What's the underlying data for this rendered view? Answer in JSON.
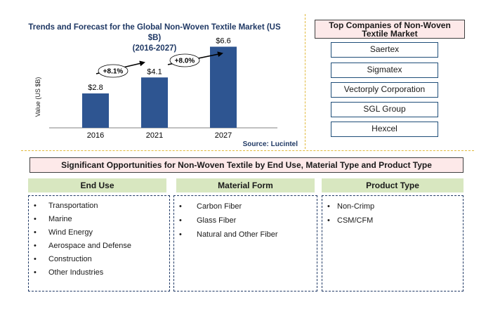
{
  "chart_data": {
    "type": "bar",
    "title": "Trends and Forecast for the Global Non-Woven Textile Market (US $B)",
    "subtitle": "(2016-2027)",
    "categories": [
      "2016",
      "2021",
      "2027"
    ],
    "values": [
      2.8,
      4.1,
      6.6
    ],
    "data_labels": [
      "$2.8",
      "$4.1",
      "$6.6"
    ],
    "ylabel": "Value (US $B)",
    "xlabel": "",
    "ylim": [
      0,
      8
    ],
    "grid": false,
    "bar_color": "#2e5591",
    "annotations": [
      "+8.1%",
      "+8.0%"
    ],
    "source": "Source: Lucintel"
  },
  "companies": {
    "title": "Top Companies of Non-Woven Textile Market",
    "items": [
      "Saertex",
      "Sigmatex",
      "Vectorply Corporation",
      "SGL Group",
      "Hexcel"
    ]
  },
  "opportunities": {
    "title": "Significant Opportunities for Non-Woven Textile by End Use, Material Type and Product Type",
    "columns": [
      {
        "header": "End Use",
        "items": [
          "Transportation",
          "Marine",
          "Wind Energy",
          "Aerospace and Defense",
          "Construction",
          "Other Industries"
        ]
      },
      {
        "header": "Material Form",
        "items": [
          "Carbon Fiber",
          "Glass Fiber",
          "Natural and Other Fiber"
        ]
      },
      {
        "header": "Product Type",
        "items": [
          "Non-Crimp",
          "CSM/CFM"
        ]
      }
    ]
  },
  "colors": {
    "accent_title": "#1f3864",
    "header_green": "#d8e7c0",
    "title_pink": "#fde9e9",
    "divider_gold": "#e1b93d"
  }
}
